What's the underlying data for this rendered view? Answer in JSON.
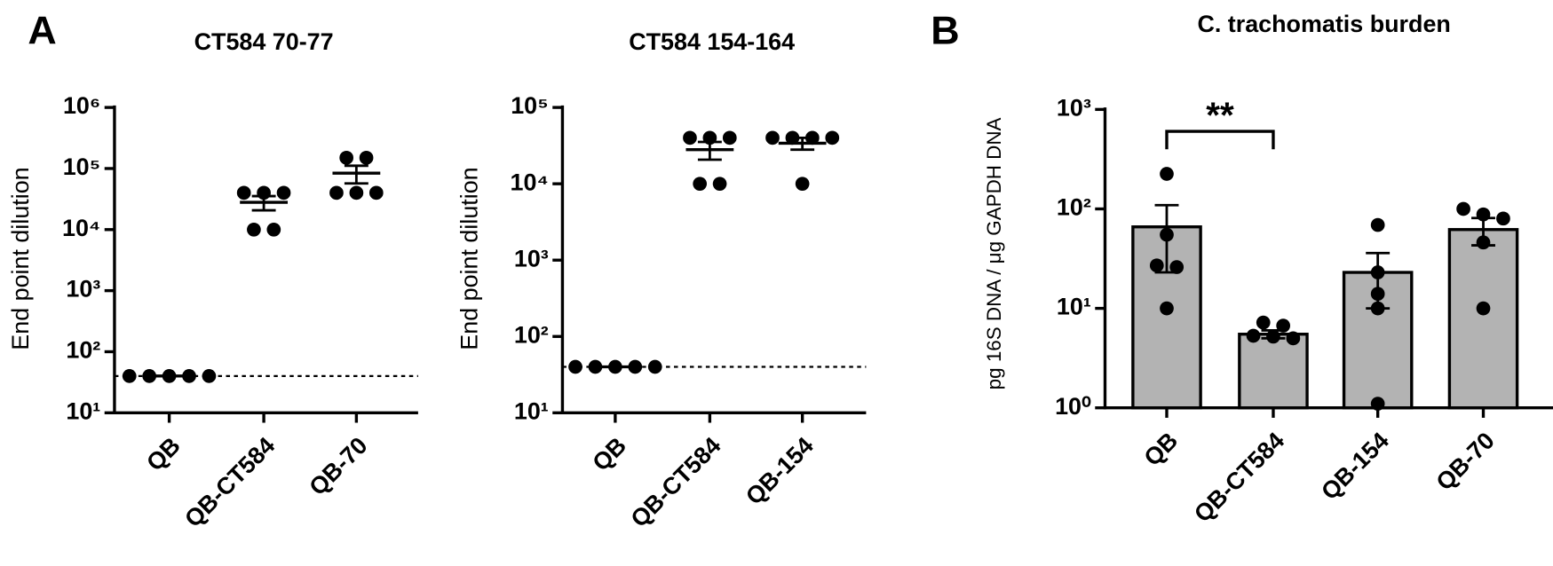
{
  "panel_labels": [
    "A",
    "B"
  ],
  "chart_data": [
    {
      "type": "scatter",
      "title": "CT584 70-77",
      "y_label": "End point dilution",
      "categories": [
        "QB",
        "QB-CT584",
        "QB-70"
      ],
      "values": [
        [
          40,
          40,
          40,
          40,
          40
        ],
        [
          40000,
          40000,
          40000,
          10000,
          10000
        ],
        [
          150000,
          150000,
          40000,
          40000,
          40000
        ]
      ],
      "means": [
        40,
        28000,
        84000
      ],
      "errors": [
        0,
        7300,
        27000
      ],
      "log_scale": true,
      "ylim": [
        10,
        1000000
      ],
      "yticks": [
        {
          "value": 10,
          "label": "10¹"
        },
        {
          "value": 100,
          "label": "10²"
        },
        {
          "value": 1000,
          "label": "10³"
        },
        {
          "value": 10000,
          "label": "10⁴"
        },
        {
          "value": 100000,
          "label": "10⁵"
        },
        {
          "value": 1000000,
          "label": "10⁶"
        }
      ],
      "reference_line": 40,
      "color": "#000000"
    },
    {
      "type": "scatter",
      "title": "CT584 154-164",
      "y_label": "End point dilution",
      "categories": [
        "QB",
        "QB-CT584",
        "QB-154"
      ],
      "values": [
        [
          40,
          40,
          40,
          40,
          40
        ],
        [
          40000,
          40000,
          40000,
          10000,
          10000
        ],
        [
          40000,
          40000,
          40000,
          40000,
          10000
        ]
      ],
      "means": [
        40,
        28000,
        34000
      ],
      "errors": [
        0,
        7300,
        6000
      ],
      "log_scale": true,
      "ylim": [
        10,
        100000
      ],
      "yticks": [
        {
          "value": 10,
          "label": "10¹"
        },
        {
          "value": 100,
          "label": "10²"
        },
        {
          "value": 1000,
          "label": "10³"
        },
        {
          "value": 10000,
          "label": "10⁴"
        },
        {
          "value": 100000,
          "label": "10⁵"
        }
      ],
      "reference_line": 40,
      "color": "#000000"
    },
    {
      "type": "bar",
      "title": "C. trachomatis burden",
      "y_label": "pg 16S DNA / μg GAPDH DNA",
      "categories": [
        "QB",
        "QB-CT584",
        "QB-154",
        "QB-70"
      ],
      "values": [
        [
          225,
          55,
          27,
          26,
          10
        ],
        [
          5.2,
          6.7,
          5,
          5.3,
          7.2
        ],
        [
          69,
          23,
          14,
          10,
          1.1
        ],
        [
          88,
          100,
          80,
          46,
          10
        ]
      ],
      "means": [
        66,
        5.5,
        23,
        62
      ],
      "errors": [
        43,
        0.5,
        13,
        19
      ],
      "log_scale": true,
      "ylim": [
        1,
        1000
      ],
      "yticks": [
        {
          "value": 1,
          "label": "10⁰"
        },
        {
          "value": 10,
          "label": "10¹"
        },
        {
          "value": 100,
          "label": "10²"
        },
        {
          "value": 1000,
          "label": "10³"
        }
      ],
      "annotation": "**",
      "bar_color": "#b3b3b3",
      "color": "#000000"
    }
  ]
}
